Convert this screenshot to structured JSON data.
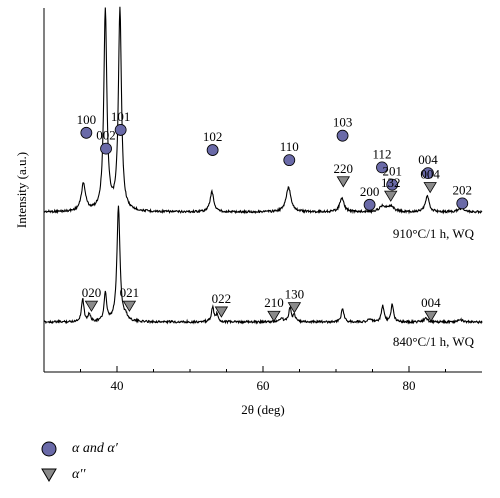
{
  "chart_data": {
    "type": "line",
    "xlabel": "2θ (deg)",
    "ylabel": "Intensity (a.u.)",
    "xlim": [
      30,
      90
    ],
    "xticks": [
      40,
      60,
      80
    ],
    "grid": false,
    "series": [
      {
        "annotation": "910°C/1 h, WQ",
        "peaks": [
          {
            "x": 35.4,
            "h": 0.38,
            "w": 0.35
          },
          {
            "x": 38.4,
            "h": 2.8,
            "w": 0.25
          },
          {
            "x": 40.4,
            "h": 2.8,
            "w": 0.25
          },
          {
            "x": 53.0,
            "h": 0.28,
            "w": 0.3
          },
          {
            "x": 63.5,
            "h": 0.34,
            "w": 0.4
          },
          {
            "x": 70.8,
            "h": 0.19,
            "w": 0.35
          },
          {
            "x": 76.4,
            "h": 0.08,
            "w": 0.5
          },
          {
            "x": 77.5,
            "h": 0.08,
            "w": 0.5
          },
          {
            "x": 82.5,
            "h": 0.22,
            "w": 0.3
          },
          {
            "x": 87.2,
            "h": 0.05,
            "w": 0.5
          }
        ]
      },
      {
        "annotation": "840°C/1 h, WQ",
        "peaks": [
          {
            "x": 35.3,
            "h": 0.32,
            "w": 0.2
          },
          {
            "x": 36.2,
            "h": 0.1,
            "w": 0.2
          },
          {
            "x": 38.4,
            "h": 0.4,
            "w": 0.2
          },
          {
            "x": 40.2,
            "h": 1.6,
            "w": 0.25
          },
          {
            "x": 41.2,
            "h": 0.06,
            "w": 0.3
          },
          {
            "x": 53.1,
            "h": 0.2,
            "w": 0.2
          },
          {
            "x": 53.7,
            "h": 0.1,
            "w": 0.2
          },
          {
            "x": 62.5,
            "h": 0.05,
            "w": 0.3
          },
          {
            "x": 63.7,
            "h": 0.2,
            "w": 0.2
          },
          {
            "x": 64.3,
            "h": 0.09,
            "w": 0.2
          },
          {
            "x": 70.9,
            "h": 0.2,
            "w": 0.2
          },
          {
            "x": 74.6,
            "h": 0.04,
            "w": 0.3
          },
          {
            "x": 76.4,
            "h": 0.23,
            "w": 0.2
          },
          {
            "x": 77.7,
            "h": 0.25,
            "w": 0.2
          },
          {
            "x": 82.3,
            "h": 0.05,
            "w": 0.3
          },
          {
            "x": 87.0,
            "h": 0.04,
            "w": 0.3
          }
        ]
      }
    ],
    "peak_labels": [
      {
        "text": "100",
        "marker": "circle",
        "x": 35.8,
        "trace": 0,
        "above": 0.55
      },
      {
        "text": "002",
        "marker": "circle",
        "x": 38.5,
        "trace": 0,
        "above": 0.44
      },
      {
        "text": "101",
        "marker": "circle",
        "x": 40.5,
        "trace": 0,
        "above": 0.57
      },
      {
        "text": "102",
        "marker": "circle",
        "x": 53.1,
        "trace": 0,
        "above": 0.43
      },
      {
        "text": "110",
        "marker": "circle",
        "x": 63.6,
        "trace": 0,
        "above": 0.36
      },
      {
        "text": "103",
        "marker": "circle",
        "x": 70.9,
        "trace": 0,
        "above": 0.53
      },
      {
        "text": "220",
        "marker": "triangle",
        "x": 71.0,
        "trace": 0,
        "above": 0.21
      },
      {
        "text": "112",
        "marker": "circle",
        "x": 76.3,
        "trace": 0,
        "above": 0.31
      },
      {
        "text": "201",
        "marker": "circle",
        "x": 77.7,
        "trace": 0,
        "above": 0.19
      },
      {
        "text": "200",
        "marker": "circle",
        "x": 74.6,
        "trace": 0,
        "above": 0.05
      },
      {
        "text": "132",
        "marker": "triangle",
        "x": 77.5,
        "trace": 0,
        "above": 0.11
      },
      {
        "text": "004",
        "marker": "circle",
        "x": 82.6,
        "trace": 0,
        "above": 0.27
      },
      {
        "text": "004",
        "marker": "triangle",
        "x": 82.9,
        "trace": 0,
        "above": 0.17
      },
      {
        "text": "202",
        "marker": "circle",
        "x": 87.3,
        "trace": 0,
        "above": 0.06
      },
      {
        "text": "020",
        "marker": "triangle",
        "x": 36.5,
        "trace": 1,
        "above": 0.11
      },
      {
        "text": "021",
        "marker": "triangle",
        "x": 41.7,
        "trace": 1,
        "above": 0.11
      },
      {
        "text": "022",
        "marker": "triangle",
        "x": 54.3,
        "trace": 1,
        "above": 0.07
      },
      {
        "text": "210",
        "marker": "triangle",
        "x": 61.5,
        "trace": 1,
        "above": 0.04
      },
      {
        "text": "130",
        "marker": "triangle",
        "x": 64.3,
        "trace": 1,
        "above": 0.1
      },
      {
        "text": "004",
        "marker": "triangle",
        "x": 83.0,
        "trace": 1,
        "above": 0.04
      }
    ],
    "legend": [
      {
        "marker": "circle",
        "label": "α and α′"
      },
      {
        "marker": "triangle",
        "label": "α′′"
      }
    ],
    "colors": {
      "circle": "#6a6aa8",
      "triangle": "#8a8a8a",
      "line": "#000000"
    }
  }
}
